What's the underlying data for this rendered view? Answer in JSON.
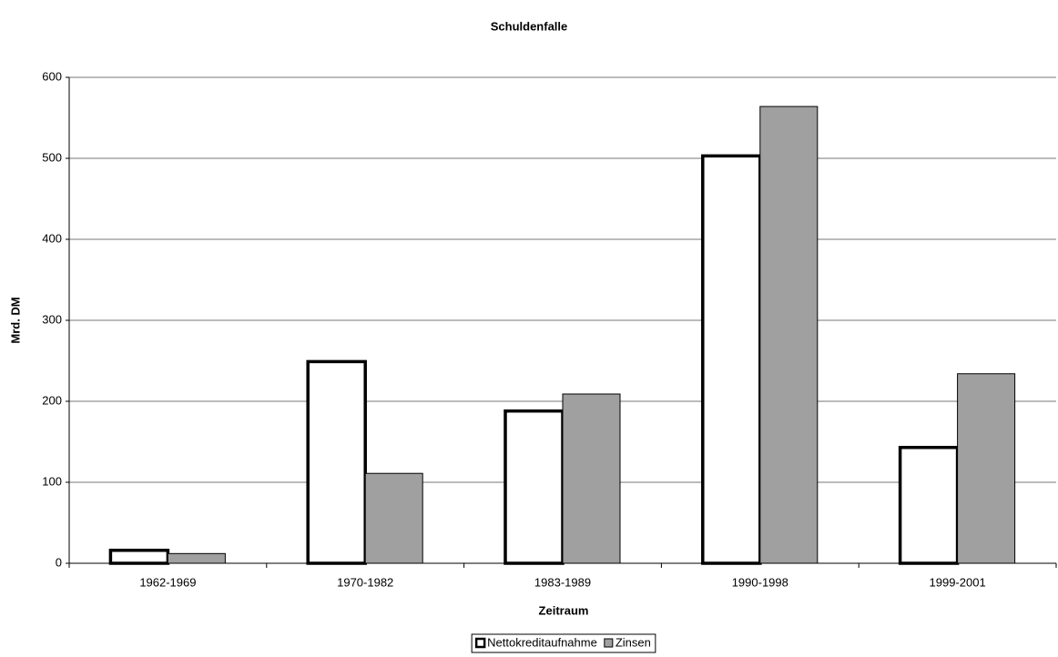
{
  "chart_data": {
    "type": "bar",
    "title": "Schuldenfalle",
    "x_label": "Zeitraum",
    "y_label": "Mrd. DM",
    "categories": [
      "1962-1969",
      "1970-1982",
      "1983-1989",
      "1990-1998",
      "1999-2001"
    ],
    "series": [
      {
        "name": "Nettokreditaufnahme",
        "color": "#ffffff",
        "values": [
          16,
          249,
          188,
          503,
          143
        ]
      },
      {
        "name": "Zinsen",
        "color": "#a0a0a0",
        "values": [
          12,
          111,
          209,
          564,
          234
        ]
      }
    ],
    "ylim": [
      0,
      600
    ],
    "yticks": [
      0,
      100,
      200,
      300,
      400,
      500,
      600
    ],
    "grid": true,
    "legend": "bottom"
  }
}
